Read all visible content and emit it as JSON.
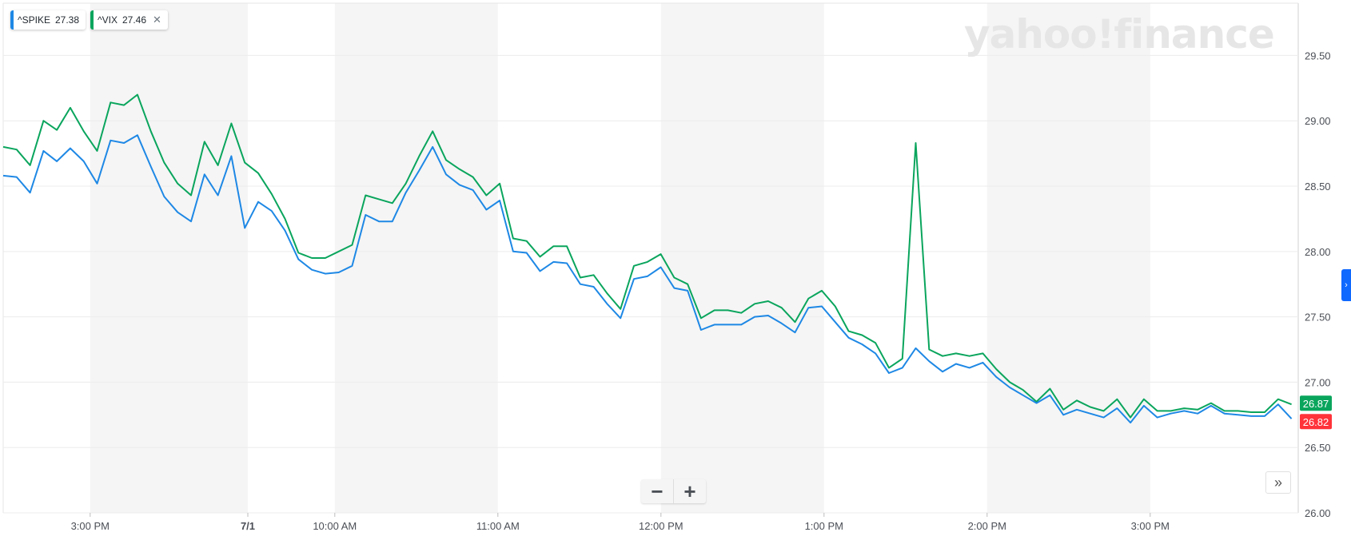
{
  "logo_text": "yahoo!finance",
  "legend": [
    {
      "symbol": "^SPIKE",
      "value": "27.38",
      "color": "#1e88e5"
    },
    {
      "symbol": "^VIX",
      "value": "27.46",
      "color": "#0aa55d",
      "close_icon": "close-icon"
    }
  ],
  "price_tags": {
    "vix": {
      "label": "26.87",
      "color": "#0aa55d"
    },
    "spike": {
      "label": "26.82",
      "color": "#ff333a"
    }
  },
  "controls": {
    "zoom_out": "−",
    "zoom_in": "+",
    "expand": "»",
    "side_tab": "›"
  },
  "chart_data": {
    "type": "line",
    "ylim": [
      26.0,
      29.9
    ],
    "y_ticks": [
      "29.50",
      "29.00",
      "28.50",
      "28.00",
      "27.50",
      "27.00",
      "26.50",
      "26.00"
    ],
    "y_tick_values": [
      29.5,
      29.0,
      28.5,
      28.0,
      27.5,
      27.0,
      26.5,
      26.0
    ],
    "x_ticks": [
      "3:00 PM",
      "7/1",
      "10:00 AM",
      "11:00 AM",
      "12:00 PM",
      "1:00 PM",
      "2:00 PM",
      "3:00 PM"
    ],
    "x_tick_index": [
      16,
      45,
      61,
      91,
      121,
      151,
      181,
      211
    ],
    "n_points": 238,
    "series": [
      {
        "name": "^VIX",
        "color": "#0aa55d",
        "values": [
          28.8,
          28.78,
          28.66,
          29.0,
          28.93,
          29.1,
          28.92,
          28.77,
          29.14,
          29.12,
          29.2,
          28.92,
          28.68,
          28.52,
          28.43,
          28.84,
          28.66,
          28.98,
          28.68,
          28.6,
          28.44,
          28.25,
          27.99,
          27.95,
          27.95,
          28.0,
          28.05,
          28.43,
          28.4,
          28.37,
          28.52,
          28.73,
          28.92,
          28.7,
          28.63,
          28.57,
          28.43,
          28.52,
          28.1,
          28.08,
          27.96,
          28.04,
          28.04,
          27.8,
          27.82,
          27.68,
          27.56,
          27.89,
          27.92,
          27.98,
          27.8,
          27.75,
          27.49,
          27.55,
          27.55,
          27.53,
          27.6,
          27.62,
          27.57,
          27.46,
          27.64,
          27.7,
          27.58,
          27.39,
          27.36,
          27.3,
          27.11,
          27.18,
          28.83,
          27.25,
          27.2,
          27.22,
          27.2,
          27.22,
          27.1,
          27.0,
          26.94,
          26.85,
          26.95,
          26.79,
          26.86,
          26.81,
          26.78,
          26.87,
          26.73,
          26.87,
          26.78,
          26.78,
          26.8,
          26.79,
          26.84,
          26.78,
          26.78,
          26.77,
          26.77,
          26.87,
          26.83
        ],
        "note": "points sampled at ~2.55 data-index steps"
      },
      {
        "name": "^SPIKE",
        "color": "#1e88e5",
        "values": [
          28.58,
          28.57,
          28.45,
          28.77,
          28.69,
          28.79,
          28.69,
          28.52,
          28.85,
          28.83,
          28.89,
          28.65,
          28.42,
          28.3,
          28.23,
          28.59,
          28.43,
          28.73,
          28.18,
          28.38,
          28.31,
          28.16,
          27.94,
          27.86,
          27.83,
          27.84,
          27.89,
          28.28,
          28.23,
          28.23,
          28.45,
          28.62,
          28.8,
          28.59,
          28.51,
          28.47,
          28.32,
          28.39,
          28.0,
          27.99,
          27.85,
          27.92,
          27.91,
          27.75,
          27.73,
          27.6,
          27.49,
          27.79,
          27.81,
          27.88,
          27.72,
          27.7,
          27.4,
          27.44,
          27.44,
          27.44,
          27.5,
          27.51,
          27.45,
          27.38,
          27.57,
          27.58,
          27.46,
          27.34,
          27.29,
          27.22,
          27.07,
          27.11,
          27.26,
          27.16,
          27.08,
          27.14,
          27.11,
          27.15,
          27.04,
          26.96,
          26.9,
          26.84,
          26.9,
          26.75,
          26.79,
          26.76,
          26.73,
          26.8,
          26.69,
          26.82,
          26.73,
          26.76,
          26.78,
          26.76,
          26.82,
          26.76,
          26.75,
          26.74,
          26.74,
          26.83,
          26.72
        ]
      }
    ]
  }
}
